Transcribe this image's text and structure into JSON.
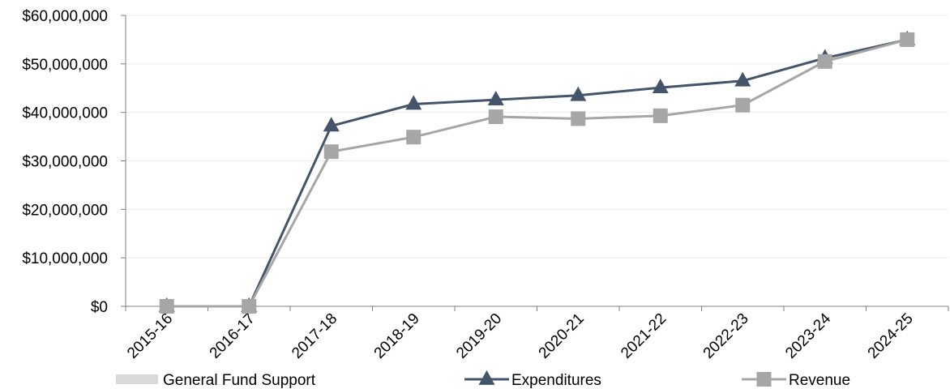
{
  "chart_data": {
    "type": "line",
    "title": "",
    "xlabel": "",
    "ylabel": "",
    "categories": [
      "2015-16",
      "2016-17",
      "2017-18",
      "2018-19",
      "2019-20",
      "2020-21",
      "2021-22",
      "2022-23",
      "2023-24",
      "2024-25"
    ],
    "ylim": [
      0,
      60000000
    ],
    "y_ticks": [
      {
        "value": 0,
        "label": "$0"
      },
      {
        "value": 10000000,
        "label": "$10,000,000"
      },
      {
        "value": 20000000,
        "label": "$20,000,000"
      },
      {
        "value": 30000000,
        "label": "$30,000,000"
      },
      {
        "value": 40000000,
        "label": "$40,000,000"
      },
      {
        "value": 50000000,
        "label": "$50,000,000"
      },
      {
        "value": 60000000,
        "label": "$60,000,000"
      }
    ],
    "grid": true,
    "legend_position": "bottom",
    "series": [
      {
        "name": "General Fund Support",
        "kind": "area",
        "color": "#d9d9d9",
        "values": [
          0,
          0,
          0,
          0,
          0,
          0,
          0,
          0,
          0,
          0
        ]
      },
      {
        "name": "Expenditures",
        "kind": "line",
        "marker": "triangle",
        "color": "#44546a",
        "values": [
          0,
          0,
          37200000,
          41700000,
          42600000,
          43500000,
          45100000,
          46500000,
          51200000,
          55000000
        ]
      },
      {
        "name": "Revenue",
        "kind": "line",
        "marker": "square",
        "color": "#a6a6a6",
        "values": [
          0,
          0,
          31900000,
          34900000,
          39100000,
          38700000,
          39300000,
          41500000,
          50500000,
          55000000
        ]
      }
    ]
  }
}
